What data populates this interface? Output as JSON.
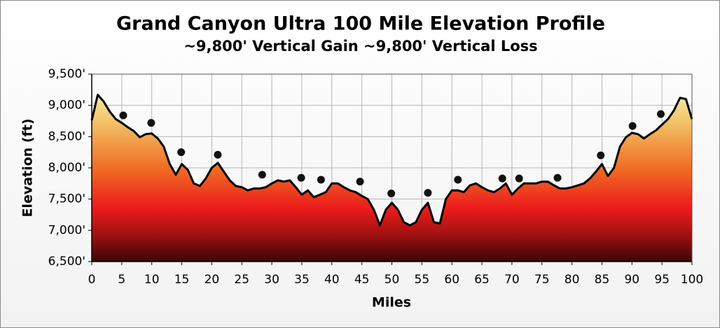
{
  "chart_data": {
    "type": "area",
    "title": "Grand Canyon Ultra 100 Mile Elevation Profile",
    "subtitle": "~9,800' Vertical Gain ~9,800' Vertical Loss",
    "x_label": "Miles",
    "y_label": "Elevation (ft)",
    "x": [
      0,
      1,
      2,
      3,
      4,
      5,
      6,
      7,
      8,
      9,
      10,
      11,
      12,
      13,
      14,
      15,
      16,
      17,
      18,
      19,
      20,
      21,
      22,
      23,
      24,
      25,
      26,
      27,
      28,
      29,
      30,
      31,
      32,
      33,
      34,
      35,
      36,
      37,
      38,
      39,
      40,
      41,
      42,
      43,
      44,
      45,
      46,
      47,
      48,
      49,
      50,
      51,
      52,
      53,
      54,
      55,
      56,
      57,
      58,
      59,
      60,
      61,
      62,
      63,
      64,
      65,
      66,
      67,
      68,
      69,
      70,
      71,
      72,
      73,
      74,
      75,
      76,
      77,
      78,
      79,
      80,
      81,
      82,
      83,
      84,
      85,
      86,
      87,
      88,
      89,
      90,
      91,
      92,
      93,
      94,
      95,
      96,
      97,
      98,
      99,
      100
    ],
    "values": [
      8760,
      9170,
      9060,
      8900,
      8780,
      8720,
      8650,
      8590,
      8490,
      8540,
      8550,
      8470,
      8340,
      8060,
      7890,
      8060,
      7970,
      7750,
      7710,
      7830,
      8000,
      8080,
      7940,
      7800,
      7710,
      7690,
      7640,
      7670,
      7670,
      7690,
      7750,
      7800,
      7780,
      7800,
      7690,
      7570,
      7640,
      7530,
      7570,
      7610,
      7750,
      7750,
      7690,
      7640,
      7610,
      7550,
      7500,
      7330,
      7080,
      7330,
      7440,
      7330,
      7130,
      7080,
      7130,
      7330,
      7440,
      7130,
      7110,
      7500,
      7640,
      7640,
      7610,
      7720,
      7750,
      7690,
      7640,
      7610,
      7670,
      7750,
      7570,
      7670,
      7750,
      7750,
      7750,
      7780,
      7780,
      7720,
      7670,
      7670,
      7690,
      7720,
      7750,
      7830,
      7940,
      8060,
      7870,
      8000,
      8340,
      8490,
      8560,
      8540,
      8470,
      8540,
      8600,
      8690,
      8780,
      8920,
      9120,
      9100,
      8780
    ],
    "line_color": "#000000",
    "points": {
      "type": "scatter",
      "color": "#111111",
      "x": [
        5.25,
        9.9,
        14.9,
        21.0,
        28.4,
        34.9,
        38.2,
        44.7,
        49.9,
        56.0,
        61.0,
        68.4,
        71.2,
        77.6,
        84.8,
        90.1,
        94.8
      ],
      "y": [
        8840,
        8720,
        8250,
        8210,
        7890,
        7840,
        7810,
        7780,
        7590,
        7600,
        7810,
        7830,
        7830,
        7840,
        8200,
        8670,
        8860
      ]
    },
    "xlim": [
      0,
      100
    ],
    "xticks": [
      0,
      5,
      10,
      15,
      20,
      25,
      30,
      35,
      40,
      45,
      50,
      55,
      60,
      65,
      70,
      75,
      80,
      85,
      90,
      95,
      100
    ],
    "ylim": [
      6500,
      9500
    ],
    "yticks": [
      {
        "value": 6500,
        "label": "6,500'"
      },
      {
        "value": 7000,
        "label": "7,000'"
      },
      {
        "value": 7500,
        "label": "7,500'"
      },
      {
        "value": 8000,
        "label": "8,000'"
      },
      {
        "value": 8500,
        "label": "8,500'"
      },
      {
        "value": 9000,
        "label": "9,000'"
      },
      {
        "value": 9500,
        "label": "9,500'"
      }
    ],
    "grid": true
  }
}
